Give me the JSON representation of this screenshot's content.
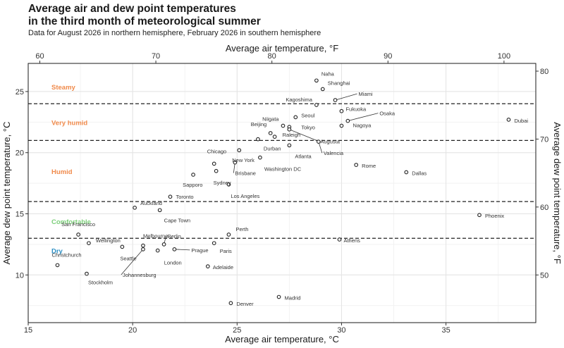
{
  "title": "Average air and dew point temperatures\nin the third month of meteorological summer",
  "subtitle": "Data for August 2026 in northern hemisphere, February 2026 in southern hemisphere",
  "chart_data": {
    "type": "scatter",
    "title": "Average air and dew point temperatures in the third month of meteorological summer",
    "subtitle": "Data for August 2026 in northern hemisphere, February 2026 in southern hemisphere",
    "xlabel": "Average air temperature, °C",
    "ylabel": "Average dew point temperature, °C",
    "xlabel_top": "Average air temperature, °F",
    "ylabel_right": "Average dew point temperature, °F",
    "xlim": [
      15,
      39.3
    ],
    "ylim": [
      6.1,
      27.3
    ],
    "x_ticks": [
      15,
      20,
      25,
      30,
      35
    ],
    "y_ticks": [
      10,
      15,
      20,
      25
    ],
    "x_ticks_top": [
      60,
      70,
      80,
      90,
      100
    ],
    "y_ticks_right": [
      50,
      60,
      70,
      80
    ],
    "grid": true,
    "thresholds": [
      13,
      16,
      21,
      24
    ],
    "threshold_style": "dashed",
    "zones": [
      {
        "label": "Steamy",
        "y": 25.4,
        "color": "#f08a4b"
      },
      {
        "label": "Very humid",
        "y": 22.5,
        "color": "#f08a4b"
      },
      {
        "label": "Humid",
        "y": 18.5,
        "color": "#f08a4b"
      },
      {
        "label": "Comfortable",
        "y": 14.4,
        "color": "#7ccf7a"
      },
      {
        "label": "Dry",
        "y": 12.0,
        "color": "#2d8fc4"
      }
    ],
    "points": [
      {
        "name": "Naha",
        "x": 28.8,
        "y": 25.9
      },
      {
        "name": "Shanghai",
        "x": 29.1,
        "y": 25.2
      },
      {
        "name": "Kagoshima",
        "x": 28.8,
        "y": 23.9
      },
      {
        "name": "Miami",
        "x": 29.7,
        "y": 24.3
      },
      {
        "name": "Fukuoka",
        "x": 30.0,
        "y": 23.4
      },
      {
        "name": "Osaka",
        "x": 30.3,
        "y": 22.6
      },
      {
        "name": "Seoul",
        "x": 27.8,
        "y": 22.9
      },
      {
        "name": "Niigata",
        "x": 27.2,
        "y": 22.2
      },
      {
        "name": "Tokyo",
        "x": 27.5,
        "y": 22.1
      },
      {
        "name": "Nagoya",
        "x": 30.0,
        "y": 22.2
      },
      {
        "name": "Dubai",
        "x": 38.0,
        "y": 22.7
      },
      {
        "name": "Beijing",
        "x": 26.6,
        "y": 21.6
      },
      {
        "name": "Raleigh",
        "x": 26.8,
        "y": 21.3
      },
      {
        "name": "Augusta",
        "x": 27.5,
        "y": 21.9
      },
      {
        "name": "Durban",
        "x": 26.0,
        "y": 21.1
      },
      {
        "name": "Atlanta",
        "x": 27.5,
        "y": 20.6
      },
      {
        "name": "Valencia",
        "x": 28.9,
        "y": 20.9
      },
      {
        "name": "New York",
        "x": 25.1,
        "y": 20.2
      },
      {
        "name": "Washington DC",
        "x": 26.1,
        "y": 19.6
      },
      {
        "name": "Chicago",
        "x": 23.9,
        "y": 19.1
      },
      {
        "name": "Brisbane",
        "x": 24.9,
        "y": 19.2
      },
      {
        "name": "Sydney",
        "x": 24.0,
        "y": 18.5
      },
      {
        "name": "Rome",
        "x": 30.7,
        "y": 19.0
      },
      {
        "name": "Dallas",
        "x": 33.1,
        "y": 18.4
      },
      {
        "name": "Sapporo",
        "x": 22.9,
        "y": 18.2
      },
      {
        "name": "Los Angeles",
        "x": 24.6,
        "y": 17.4
      },
      {
        "name": "Toronto",
        "x": 21.8,
        "y": 16.4
      },
      {
        "name": "Auckland",
        "x": 20.1,
        "y": 15.5
      },
      {
        "name": "Cape Town",
        "x": 21.3,
        "y": 15.3
      },
      {
        "name": "Phoenix",
        "x": 36.6,
        "y": 14.9
      },
      {
        "name": "San Francisco",
        "x": 17.4,
        "y": 13.3
      },
      {
        "name": "Perth",
        "x": 24.6,
        "y": 13.3
      },
      {
        "name": "Athens",
        "x": 29.9,
        "y": 12.9
      },
      {
        "name": "Wellington",
        "x": 17.9,
        "y": 12.6
      },
      {
        "name": "Melbourne",
        "x": 20.5,
        "y": 12.4
      },
      {
        "name": "Berlin",
        "x": 21.5,
        "y": 12.5
      },
      {
        "name": "Paris",
        "x": 23.9,
        "y": 12.6
      },
      {
        "name": "Seattle",
        "x": 19.5,
        "y": 12.3
      },
      {
        "name": "Johannesburg",
        "x": 20.5,
        "y": 12.1
      },
      {
        "name": "London",
        "x": 21.2,
        "y": 12.0
      },
      {
        "name": "Prague",
        "x": 22.0,
        "y": 12.1
      },
      {
        "name": "Christchurch",
        "x": 16.4,
        "y": 10.8
      },
      {
        "name": "Adelaide",
        "x": 23.6,
        "y": 10.7
      },
      {
        "name": "Stockholm",
        "x": 17.8,
        "y": 10.1
      },
      {
        "name": "Madrid",
        "x": 27.0,
        "y": 8.2
      },
      {
        "name": "Denver",
        "x": 24.7,
        "y": 7.7
      }
    ]
  }
}
